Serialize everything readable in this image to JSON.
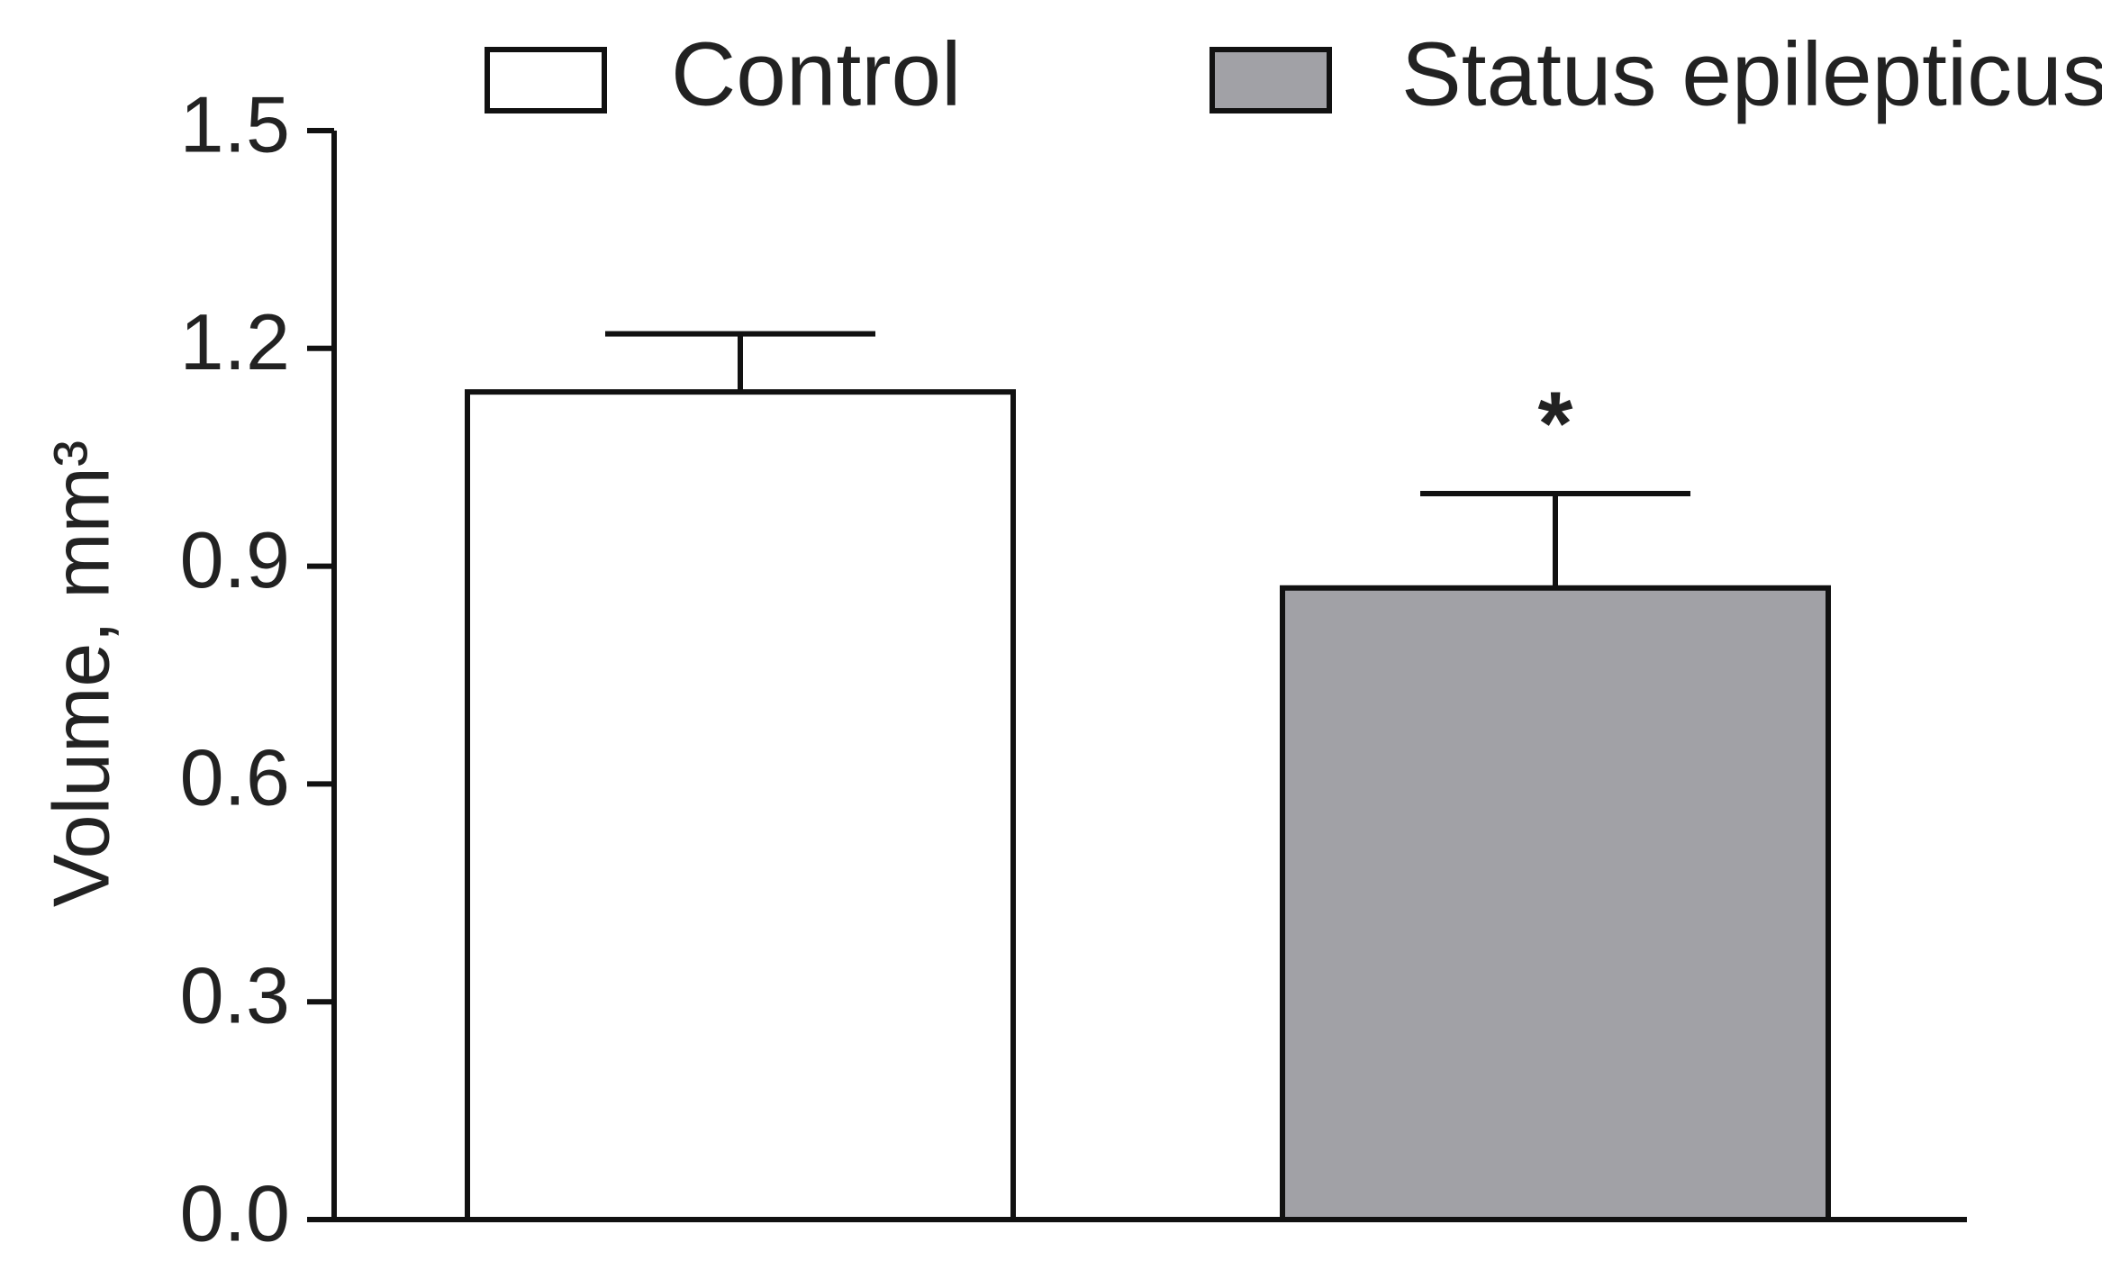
{
  "chart_data": {
    "type": "bar",
    "ylabel": "Volume, mm³",
    "series": [
      {
        "name": "Control",
        "color": "#ffffff",
        "values": [
          1.14
        ],
        "errors": [
          0.08
        ]
      },
      {
        "name": "Status epilepticus",
        "color": "#a1a1a6",
        "values": [
          0.87
        ],
        "errors": [
          0.13
        ]
      }
    ],
    "annotations": [
      {
        "text": "*",
        "series": 1
      }
    ],
    "ylim": [
      0,
      1.5
    ],
    "yticks": [
      {
        "value": 0,
        "label": "0.0"
      },
      0.3,
      0.6,
      0.9,
      1.2,
      1.5
    ],
    "legend": "top"
  }
}
